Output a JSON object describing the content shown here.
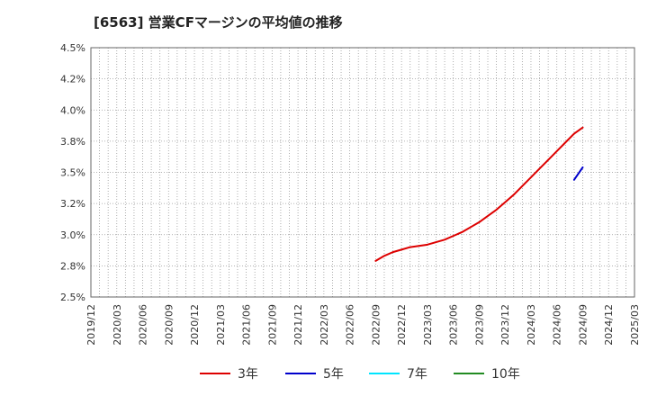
{
  "title": "[6563]  営業CFマージンの平均値の推移",
  "chart_data": {
    "type": "line",
    "title": "[6563]  営業CFマージンの平均値の推移",
    "xlabel": "",
    "ylabel": "",
    "ylim": [
      2.5,
      4.5
    ],
    "y_ticks": [
      "4.5%",
      "4.2%",
      "4.0%",
      "3.8%",
      "3.5%",
      "3.2%",
      "3.0%",
      "2.8%",
      "2.5%"
    ],
    "x_ticks": [
      "2019/12",
      "2020/03",
      "2020/06",
      "2020/09",
      "2020/12",
      "2021/03",
      "2021/06",
      "2021/09",
      "2021/12",
      "2022/03",
      "2022/06",
      "2022/09",
      "2022/12",
      "2023/03",
      "2023/06",
      "2023/09",
      "2023/12",
      "2024/03",
      "2024/06",
      "2024/09",
      "2024/12",
      "2025/03"
    ],
    "grid": true,
    "series": [
      {
        "name": "3年",
        "color": "#dd0000",
        "x": [
          "2022/09",
          "2022/10",
          "2022/11",
          "2022/12",
          "2023/01",
          "2023/02",
          "2023/03",
          "2023/04",
          "2023/05",
          "2023/06",
          "2023/07",
          "2023/08",
          "2023/09",
          "2023/10",
          "2023/11",
          "2023/12",
          "2024/01",
          "2024/02",
          "2024/03",
          "2024/04",
          "2024/05",
          "2024/06",
          "2024/07",
          "2024/08",
          "2024/09"
        ],
        "values": [
          2.79,
          2.83,
          2.86,
          2.88,
          2.9,
          2.91,
          2.92,
          2.94,
          2.96,
          2.99,
          3.02,
          3.06,
          3.1,
          3.15,
          3.2,
          3.26,
          3.32,
          3.39,
          3.46,
          3.53,
          3.6,
          3.67,
          3.74,
          3.81,
          3.86
        ]
      },
      {
        "name": "5年",
        "color": "#0000cc",
        "x": [
          "2024/08",
          "2024/09"
        ],
        "values": [
          3.44,
          3.54
        ]
      },
      {
        "name": "7年",
        "color": "#00e5ff",
        "x": [],
        "values": []
      },
      {
        "name": "10年",
        "color": "#228b22",
        "x": [],
        "values": []
      }
    ]
  }
}
